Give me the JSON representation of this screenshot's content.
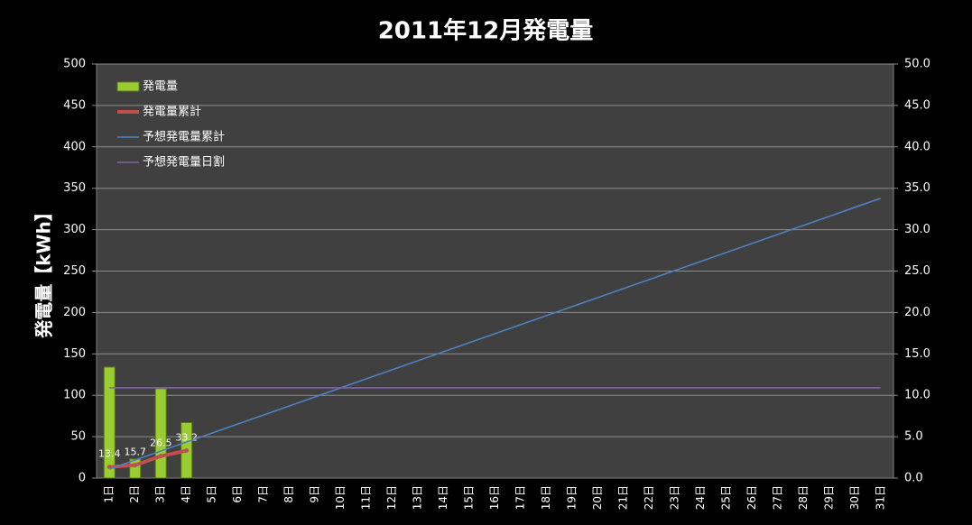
{
  "chart_data": {
    "type": "bar-line",
    "title": "2011年12月発電量",
    "y_label": "発電量【kWh】",
    "categories": [
      "1日",
      "2日",
      "3日",
      "4日",
      "5日",
      "6日",
      "7日",
      "8日",
      "9日",
      "10日",
      "11日",
      "12日",
      "13日",
      "14日",
      "15日",
      "16日",
      "17日",
      "18日",
      "19日",
      "20日",
      "21日",
      "22日",
      "23日",
      "24日",
      "25日",
      "26日",
      "27日",
      "28日",
      "29日",
      "30日",
      "31日"
    ],
    "ylim": [
      0,
      500
    ],
    "yticks": [
      0,
      50,
      100,
      150,
      200,
      250,
      300,
      350,
      400,
      450,
      500
    ],
    "y2lim": [
      0,
      50
    ],
    "y2ticks": [
      {
        "value": 0,
        "label": "0.0"
      },
      {
        "value": 5,
        "label": "5.0"
      },
      {
        "value": 10,
        "label": "10.0"
      },
      {
        "value": 15,
        "label": "15.0"
      },
      {
        "value": 20,
        "label": "20.0"
      },
      {
        "value": 25,
        "label": "25.0"
      },
      {
        "value": 30,
        "label": "30.0"
      },
      {
        "value": 35,
        "label": "35.0"
      },
      {
        "value": 40,
        "label": "40.0"
      },
      {
        "value": 45,
        "label": "45.0"
      },
      {
        "value": 50,
        "label": "50.0"
      }
    ],
    "grid": true,
    "legend": "upper left",
    "series": [
      {
        "name": "発電量",
        "kind": "bar",
        "axis": "y2",
        "color": "#9acd32",
        "values": [
          13.4,
          2.3,
          10.8,
          6.7,
          null,
          null,
          null,
          null,
          null,
          null,
          null,
          null,
          null,
          null,
          null,
          null,
          null,
          null,
          null,
          null,
          null,
          null,
          null,
          null,
          null,
          null,
          null,
          null,
          null,
          null,
          null
        ]
      },
      {
        "name": "発電量累計",
        "kind": "line",
        "color": "#c0504d",
        "data_labels": true,
        "values": [
          13.4,
          15.7,
          26.5,
          33.2,
          null,
          null,
          null,
          null,
          null,
          null,
          null,
          null,
          null,
          null,
          null,
          null,
          null,
          null,
          null,
          null,
          null,
          null,
          null,
          null,
          null,
          null,
          null,
          null,
          null,
          null,
          null
        ]
      },
      {
        "name": "予想発電量累計",
        "kind": "line",
        "color": "#4f81bd",
        "values": [
          10.9,
          21.8,
          32.7,
          43.6,
          54.5,
          65.4,
          76.3,
          87.2,
          98.1,
          109,
          119.9,
          130.8,
          141.7,
          152.6,
          163.5,
          174.4,
          185.3,
          196.2,
          207.1,
          218,
          228.9,
          239.8,
          250.7,
          261.6,
          272.5,
          283.4,
          294.3,
          305.2,
          316.1,
          327,
          337.9
        ]
      },
      {
        "name": "予想発電量日割",
        "kind": "line",
        "axis": "y2",
        "color": "#8064a2",
        "values": [
          10.9,
          10.9,
          10.9,
          10.9,
          10.9,
          10.9,
          10.9,
          10.9,
          10.9,
          10.9,
          10.9,
          10.9,
          10.9,
          10.9,
          10.9,
          10.9,
          10.9,
          10.9,
          10.9,
          10.9,
          10.9,
          10.9,
          10.9,
          10.9,
          10.9,
          10.9,
          10.9,
          10.9,
          10.9,
          10.9,
          10.9
        ]
      }
    ]
  }
}
